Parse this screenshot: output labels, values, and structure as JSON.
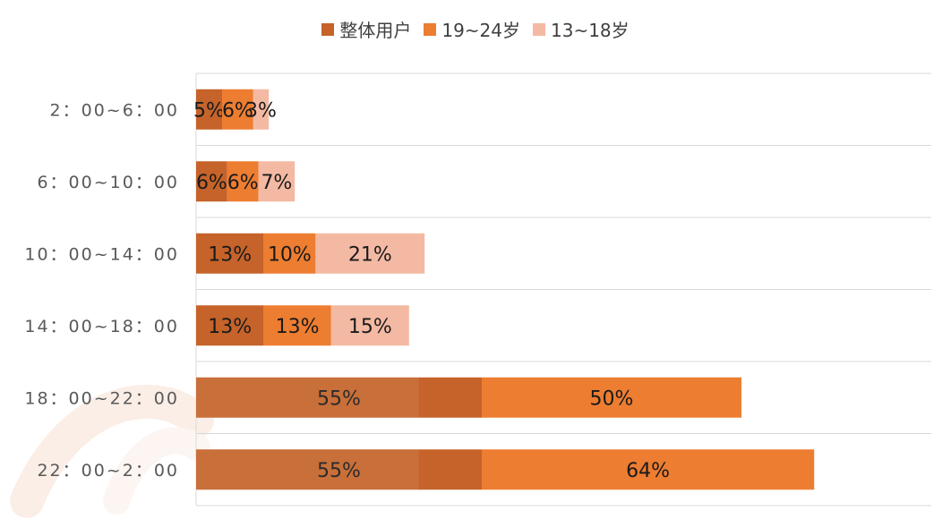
{
  "chart_data": {
    "type": "bar",
    "orientation": "horizontal",
    "stacked": true,
    "categories": [
      "2：00~6：00",
      "6：00~10：00",
      "10：00~14：00",
      "14：00~18：00",
      "18：00~22：00",
      "22：00~2：00"
    ],
    "series": [
      {
        "name": "整体用户",
        "color": "#C5632A",
        "values": [
          5,
          6,
          13,
          13,
          55,
          55
        ]
      },
      {
        "name": "19~24岁",
        "color": "#ED7D31",
        "values": [
          6,
          6,
          10,
          13,
          50,
          64
        ]
      },
      {
        "name": "13~18岁",
        "color": "#F4B9A3",
        "values": [
          3,
          7,
          21,
          15,
          null,
          null
        ]
      }
    ],
    "data_labels": [
      [
        "5%",
        "6%",
        "3%"
      ],
      [
        "6%",
        "6%",
        "7%"
      ],
      [
        "13%",
        "10%",
        "21%"
      ],
      [
        "13%",
        "13%",
        "15%"
      ],
      [
        "55%",
        "50%",
        null
      ],
      [
        "55%",
        "64%",
        null
      ]
    ],
    "legend_position": "top-center",
    "grid": {
      "horizontal": true,
      "vertical": false
    },
    "x_axis_visible": false
  }
}
